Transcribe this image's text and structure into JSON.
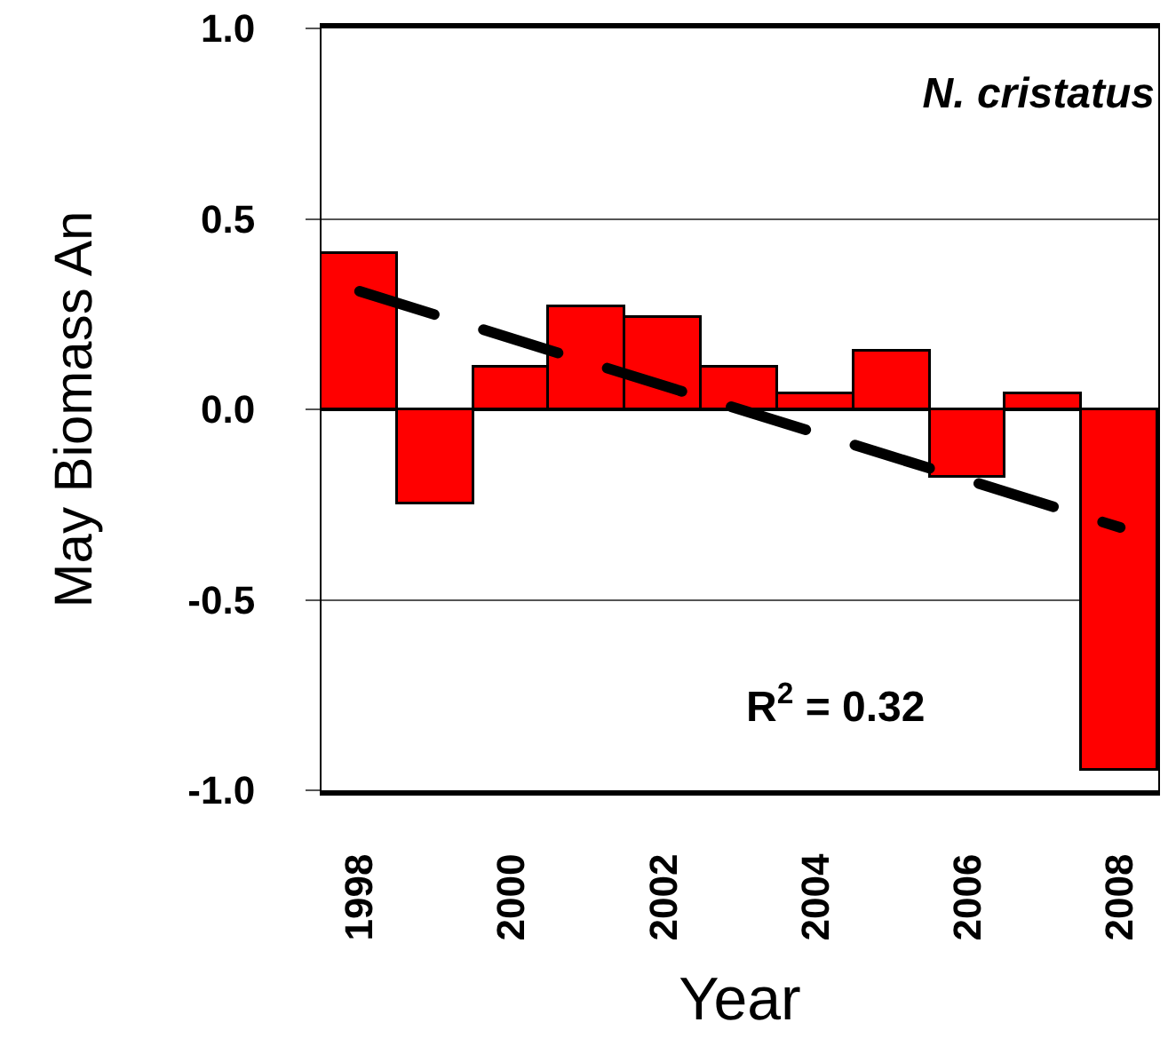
{
  "chart_data": {
    "type": "bar",
    "title": "N. cristatus",
    "xlabel": "Year",
    "ylabel": "May Biomass An",
    "annotations": [
      "R$^{2}$ = 0.32"
    ],
    "x": [
      1998,
      1999,
      2000,
      2001,
      2002,
      2003,
      2004,
      2005,
      2006,
      2007,
      2008
    ],
    "series": [
      {
        "color": "#ff0000",
        "values": [
          0.41,
          -0.25,
          0.11,
          0.27,
          0.24,
          0.11,
          0.04,
          0.15,
          -0.18,
          0.04,
          -0.95
        ]
      },
      {
        "type": "line",
        "color": "#000000",
        "line_style": "dashed",
        "x": [
          1998,
          2008
        ],
        "values": [
          0.31,
          -0.31
        ]
      }
    ],
    "xlim": [
      1997.5,
      2008.5
    ],
    "xticks": [
      1998,
      2000,
      2002,
      2004,
      2006,
      2008
    ],
    "ylim": [
      -1.0,
      1.0
    ],
    "yticks": [
      {
        "value": -1.0,
        "label": "-1.0"
      },
      {
        "value": -0.5,
        "label": "-0.5"
      },
      {
        "value": 0.0,
        "label": "0.0"
      },
      {
        "value": 0.5,
        "label": "0.5"
      },
      {
        "value": 1.0,
        "label": "1.0"
      }
    ],
    "grid": "y"
  }
}
